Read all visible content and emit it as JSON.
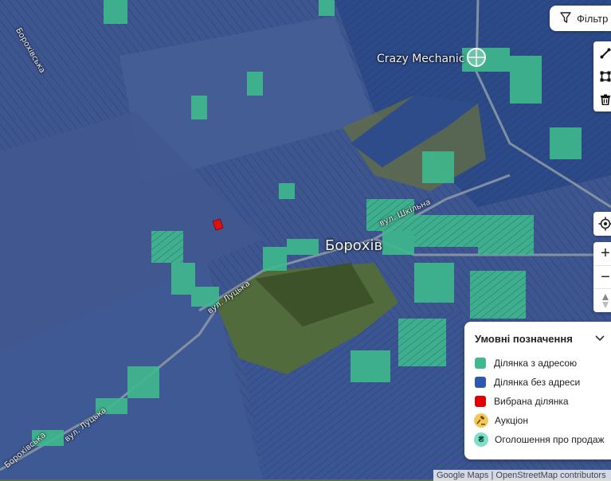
{
  "map": {
    "poi_label": "Crazy Mechanic",
    "town_label": "Борохів",
    "streets": [
      "вул. Шкільна",
      "вул. Луцька",
      "вул. Луцька",
      "Борохівська",
      "Борохівська"
    ],
    "colors": {
      "parcel_with_address": "#3fb98d",
      "parcel_without_address": "#2f4f9e",
      "selected_parcel": "#e01010"
    }
  },
  "controls": {
    "filter_label": "Фільтр",
    "filter_icon": "filter-icon",
    "draw_tools": [
      "line-draw-icon",
      "polygon-draw-icon",
      "trash-icon"
    ],
    "locate_icon": "locate-icon",
    "zoom_in": "+",
    "zoom_out": "−",
    "compass_icon": "compass-icon"
  },
  "legend": {
    "title": "Умовні позначення",
    "items": [
      {
        "label": "Ділянка з адресою",
        "color": "#3fb98d"
      },
      {
        "label": "Ділянка без адреси",
        "color": "#2f56b0"
      },
      {
        "label": "Вибрана ділянка",
        "color": "#e00000"
      },
      {
        "label": "Аукціон",
        "icon": "gavel-icon",
        "color": "#f3c85a"
      },
      {
        "label": "Оголошення про продаж",
        "icon": "hryvnia-icon",
        "color": "#7fe0c8"
      }
    ]
  },
  "attribution": "Google Maps | OpenStreetMap contributors"
}
